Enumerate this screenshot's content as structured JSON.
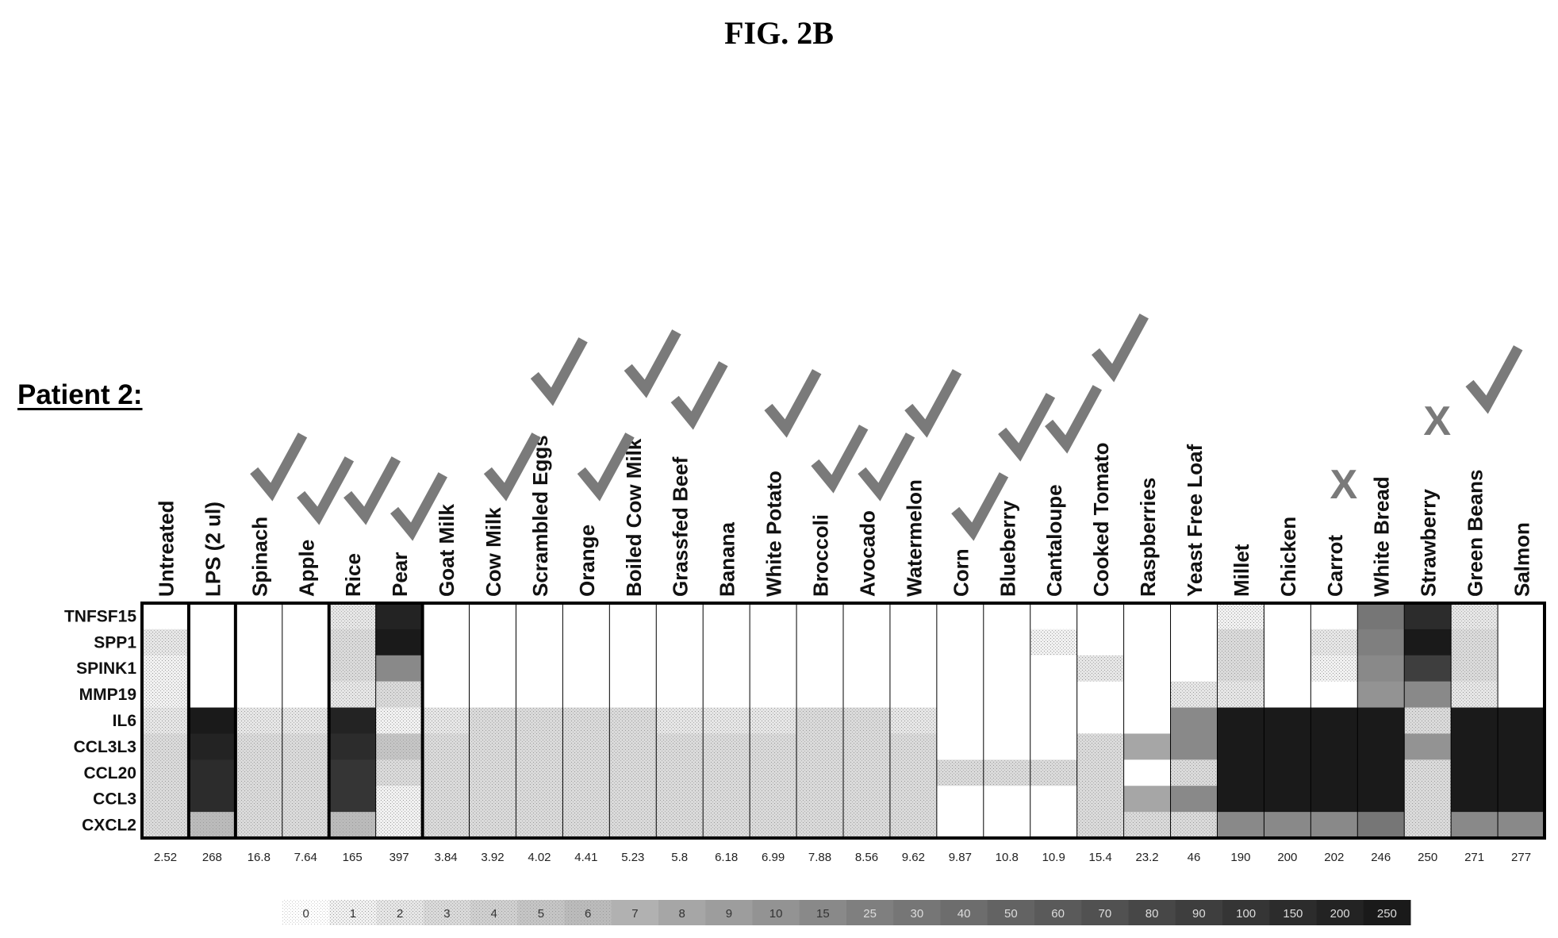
{
  "figure_label": "FIG. 2B",
  "patient_label": "Patient 2:",
  "chart_data": {
    "type": "heatmap",
    "title": "",
    "columns": [
      "Untreated",
      "LPS (2 ul)",
      "Spinach",
      "Apple",
      "Rice",
      "Pear",
      "Goat Milk",
      "Cow Milk",
      "Scrambled Eggs",
      "Orange",
      "Boiled Cow Milk",
      "Grassfed Beef",
      "Banana",
      "White Potato",
      "Broccoli",
      "Avocado",
      "Watermelon",
      "Corn",
      "Blueberry",
      "Cantaloupe",
      "Cooked Tomato",
      "Raspberries",
      "Yeast Free Loaf",
      "Millet",
      "Chicken",
      "Carrot",
      "White Bread",
      "Strawberry",
      "Green Beans",
      "Salmon"
    ],
    "rows": [
      "TNFSF15",
      "SPP1",
      "SPINK1",
      "MMP19",
      "IL6",
      "CCL3L3",
      "CCL20",
      "CCL3",
      "CXCL2"
    ],
    "markers": [
      "",
      "",
      "check",
      "check",
      "check",
      "check",
      "",
      "check",
      "check",
      "check",
      "check",
      "check",
      "",
      "check",
      "check",
      "check",
      "check",
      "check",
      "check",
      "check",
      "check",
      "",
      "",
      "",
      "",
      "X",
      "",
      "X",
      "check",
      ""
    ],
    "column_totals": [
      "2.52",
      "268",
      "16.8",
      "7.64",
      "165",
      "397",
      "3.84",
      "3.92",
      "4.02",
      "4.41",
      "5.23",
      "5.8",
      "6.18",
      "6.99",
      "7.88",
      "8.56",
      "9.62",
      "9.87",
      "10.8",
      "10.9",
      "15.4",
      "23.2",
      "46",
      "190",
      "200",
      "202",
      "246",
      "250",
      "271",
      "277"
    ],
    "values": [
      [
        0,
        0,
        0,
        0,
        2,
        200,
        0,
        0,
        0,
        0,
        0,
        0,
        0,
        0,
        0,
        0,
        0,
        0,
        0,
        0,
        0,
        0,
        0,
        1,
        0,
        0,
        30,
        150,
        2,
        0
      ],
      [
        2,
        0,
        0,
        0,
        3,
        250,
        0,
        0,
        0,
        0,
        0,
        0,
        0,
        0,
        0,
        0,
        0,
        0,
        0,
        1,
        0,
        0,
        0,
        3,
        0,
        2,
        25,
        250,
        3,
        0
      ],
      [
        1,
        0,
        0,
        0,
        3,
        20,
        0,
        0,
        0,
        0,
        0,
        0,
        0,
        0,
        0,
        0,
        0,
        0,
        0,
        0,
        2,
        0,
        0,
        3,
        0,
        1,
        15,
        90,
        3,
        0
      ],
      [
        1,
        0,
        0,
        0,
        2,
        3,
        0,
        0,
        0,
        0,
        0,
        0,
        0,
        0,
        0,
        0,
        0,
        0,
        0,
        0,
        0,
        0,
        2,
        2,
        0,
        0,
        10,
        20,
        2,
        0
      ],
      [
        2,
        250,
        2,
        2,
        200,
        1,
        2,
        3,
        3,
        3,
        3,
        2,
        2,
        2,
        3,
        3,
        2,
        0,
        0,
        0,
        0,
        0,
        15,
        250,
        250,
        250,
        250,
        3,
        250,
        250
      ],
      [
        3,
        200,
        3,
        3,
        150,
        5,
        3,
        3,
        3,
        3,
        3,
        3,
        3,
        3,
        3,
        3,
        3,
        0,
        0,
        0,
        3,
        8,
        20,
        250,
        250,
        250,
        250,
        10,
        250,
        250
      ],
      [
        3,
        150,
        3,
        3,
        100,
        3,
        3,
        3,
        3,
        3,
        3,
        3,
        3,
        3,
        3,
        3,
        3,
        3,
        3,
        3,
        3,
        0,
        3,
        250,
        250,
        250,
        250,
        3,
        250,
        250
      ],
      [
        3,
        150,
        3,
        3,
        100,
        1,
        3,
        3,
        3,
        3,
        3,
        3,
        3,
        3,
        3,
        3,
        3,
        0,
        0,
        0,
        3,
        8,
        20,
        250,
        250,
        250,
        250,
        3,
        250,
        250
      ],
      [
        3,
        6,
        3,
        3,
        6,
        1,
        3,
        3,
        3,
        3,
        3,
        3,
        3,
        3,
        3,
        3,
        3,
        0,
        0,
        0,
        3,
        3,
        3,
        20,
        15,
        15,
        30,
        3,
        15,
        20
      ]
    ],
    "color_scale": [
      "0",
      "1",
      "2",
      "3",
      "4",
      "5",
      "6",
      "7",
      "8",
      "9",
      "10",
      "15",
      "25",
      "30",
      "40",
      "50",
      "60",
      "70",
      "80",
      "90",
      "100",
      "150",
      "200",
      "250"
    ],
    "colors": {
      "check": "#7a7a7a",
      "scale_low": "#ffffff",
      "scale_high": "#1a1a1a",
      "border": "#000000"
    }
  }
}
